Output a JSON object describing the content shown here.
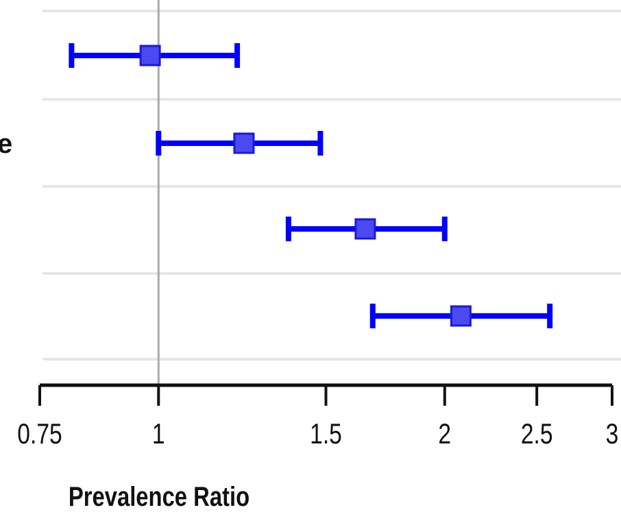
{
  "chart_data": {
    "type": "forest",
    "x_scale": "log",
    "xlim": [
      0.75,
      3
    ],
    "xlabel": "Prevalence Ratio",
    "ticks": [
      0.75,
      1,
      1.5,
      2,
      2.5,
      3
    ],
    "tick_labels": [
      "0.75",
      "1",
      "1.5",
      "2",
      "2.5",
      "3"
    ],
    "reference_line": 1,
    "gridlines": "horizontal",
    "rows": [
      {
        "label": "",
        "estimate": 0.98,
        "lower": 0.81,
        "upper": 1.21
      },
      {
        "label": "e",
        "estimate": 1.23,
        "lower": 1.0,
        "upper": 1.48
      },
      {
        "label": "",
        "estimate": 1.65,
        "lower": 1.37,
        "upper": 2.0
      },
      {
        "label": "",
        "estimate": 2.08,
        "lower": 1.68,
        "upper": 2.58
      }
    ],
    "colors": {
      "interval": "#0000ff",
      "point_fill": "#4a4af0",
      "point_stroke": "#1a1ad8",
      "reference": "#aaaaaa",
      "gridline": "#e6e6e6",
      "axis": "#111111"
    }
  }
}
